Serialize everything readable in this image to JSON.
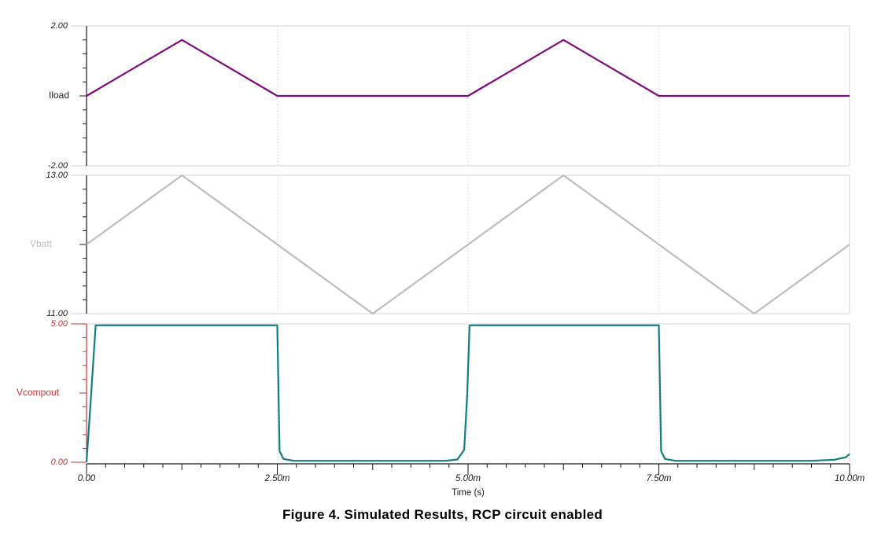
{
  "figure": {
    "caption": "Figure 4. Simulated Results, RCP circuit enabled"
  },
  "colors": {
    "panel_border": "#d6d6d6",
    "grid_dotted": "#cccccc",
    "x_axis": "#1a1a1a",
    "iload_curve": "#7d0b7d",
    "vbatt_curve": "#bdbdbd",
    "vcompout_curve": "#127f7f",
    "vcompout_axis": "#cc3333"
  },
  "chart_data": {
    "type": "line",
    "title": "",
    "xlabel": "Time (s)",
    "xlim_ms": [
      0,
      10
    ],
    "x_minor_step_ms": 0.25,
    "grid_x_ms": [
      2.5,
      5,
      7.5
    ],
    "x_ticks": [
      {
        "value_ms": 0,
        "label": "0.00"
      },
      {
        "value_ms": 2.5,
        "label": "2.50m"
      },
      {
        "value_ms": 5,
        "label": "5.00m"
      },
      {
        "value_ms": 7.5,
        "label": "7.50m"
      },
      {
        "value_ms": 10,
        "label": "10.00m"
      }
    ],
    "panels": [
      {
        "id": "iload",
        "label": "Iload",
        "ylim": [
          -2,
          2
        ],
        "y_top_label": "2.00",
        "y_bottom_label": "-2.00",
        "y_divisions": 10,
        "axis_color": "#1a1a1a",
        "label_color": "#1a1a1a",
        "curve_color": "#7d0b7d",
        "points_t_ms": [
          0,
          1.25,
          2.5,
          5,
          6.25,
          7.5,
          10
        ],
        "points_y": [
          0,
          1.6,
          0,
          0,
          1.6,
          0,
          0
        ]
      },
      {
        "id": "vbatt",
        "label": "Vbatt",
        "ylim": [
          11,
          13
        ],
        "y_top_label": "13.00",
        "y_bottom_label": "11.00",
        "y_divisions": 10,
        "axis_color": "#1a1a1a",
        "label_color": "#bdbdbd",
        "curve_color": "#bdbdbd",
        "points_t_ms": [
          0,
          1.25,
          3.75,
          6.25,
          8.75,
          10
        ],
        "points_y": [
          12,
          13,
          11,
          13,
          11,
          12
        ]
      },
      {
        "id": "vcompout",
        "label": "Vcompout",
        "ylim": [
          0,
          5
        ],
        "y_top_label": "5.00",
        "y_bottom_label": "0.00",
        "y_divisions": 10,
        "axis_color": "#cc3333",
        "label_color": "#cc3333",
        "curve_color": "#127f7f",
        "points_t_ms": [
          0,
          0.05,
          0.12,
          2.5,
          2.53,
          2.58,
          2.72,
          4.7,
          4.86,
          4.95,
          4.99,
          5.02,
          7.5,
          7.53,
          7.58,
          7.72,
          9.5,
          9.8,
          9.95,
          10
        ],
        "points_y": [
          0,
          2.0,
          4.95,
          4.95,
          0.4,
          0.12,
          0.05,
          0.05,
          0.1,
          0.45,
          2.5,
          4.95,
          4.95,
          0.4,
          0.12,
          0.05,
          0.05,
          0.09,
          0.18,
          0.3
        ]
      }
    ]
  }
}
